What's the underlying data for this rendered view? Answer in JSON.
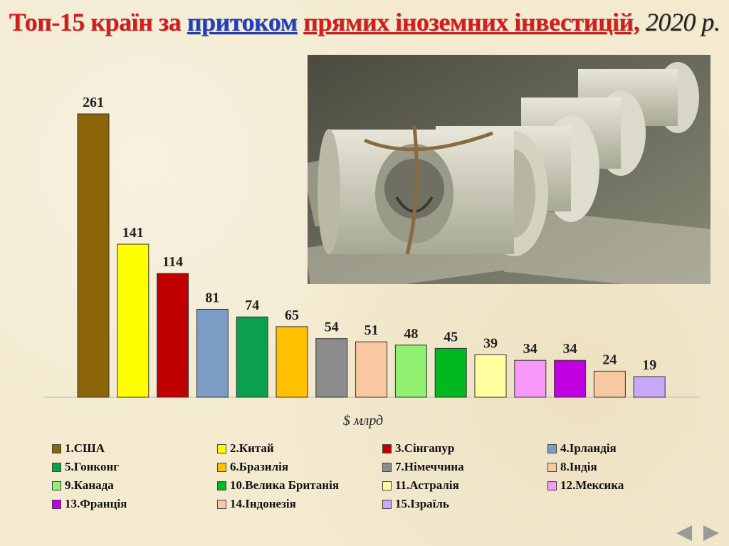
{
  "title": {
    "part1": "Топ-15 країн за ",
    "part2": "притоком",
    "part3": "прямих іноземних інвестицій,",
    "part4": " 2020 р."
  },
  "photo": {
    "icon": "money-rolls-photo"
  },
  "chart_data": {
    "type": "bar",
    "categories": [
      "1.США",
      "2.Китай",
      "3.Сінгапур",
      "4.Ірландія",
      "5.Гонконг",
      "6.Бразилія",
      "7.Німеччина",
      "8.Індія",
      "9.Канада",
      "10.Велика Британія",
      "11.Астралія",
      "12.Мексика",
      "13.Франція",
      "14.Індонезія",
      "15.Ізраїль"
    ],
    "values": [
      261,
      141,
      114,
      81,
      74,
      65,
      54,
      51,
      48,
      45,
      39,
      34,
      34,
      24,
      19
    ],
    "colors": [
      "#8b6508",
      "#ffff00",
      "#c00000",
      "#7b9cc4",
      "#0aa050",
      "#ffc000",
      "#8c8c8c",
      "#fac8a0",
      "#90f070",
      "#00b820",
      "#ffffa0",
      "#f898f8",
      "#c000e0",
      "#f8c8a0",
      "#c8a8f8"
    ],
    "xlabel": "$ млрд",
    "ylim": [
      0,
      261
    ],
    "grid": false,
    "legend_position": "bottom"
  },
  "nav": {
    "prev_icon": "arrow-left-icon",
    "next_icon": "arrow-right-icon"
  }
}
